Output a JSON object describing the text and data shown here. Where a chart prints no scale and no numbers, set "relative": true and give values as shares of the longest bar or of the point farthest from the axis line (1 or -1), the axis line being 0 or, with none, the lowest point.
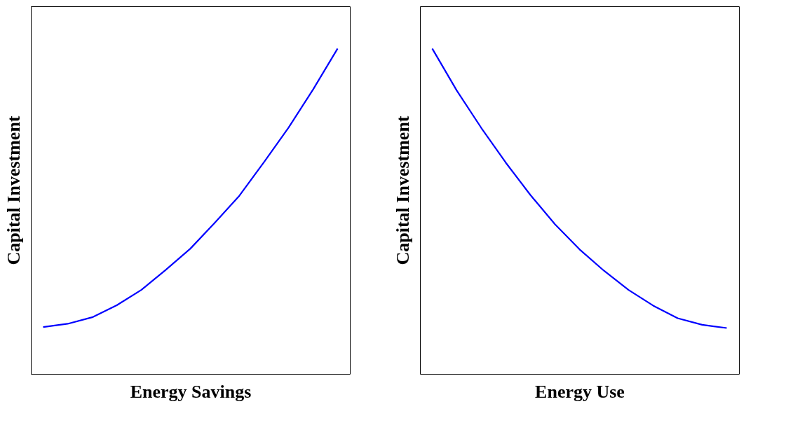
{
  "chart_data": [
    {
      "type": "line",
      "relative": true,
      "xlabel": "Energy Savings",
      "ylabel": "Capital Investment",
      "tick_labels": false,
      "grid": false,
      "marker": "none",
      "line_style": "solid",
      "categories": [
        null,
        null,
        null,
        null,
        null,
        null,
        null,
        null,
        null,
        null,
        null,
        null,
        null
      ],
      "series": [
        {
          "color": "#0000ff",
          "values": [
            0.144,
            0.154,
            0.174,
            0.211,
            0.258,
            0.32,
            0.385,
            0.465,
            0.548,
            0.651,
            0.757,
            0.874,
            1.0
          ]
        }
      ]
    },
    {
      "type": "line",
      "relative": true,
      "xlabel": "Energy Use",
      "ylabel": "Capital Investment",
      "tick_labels": false,
      "grid": false,
      "marker": "none",
      "line_style": "solid",
      "categories": [
        null,
        null,
        null,
        null,
        null,
        null,
        null,
        null,
        null,
        null,
        null,
        null,
        null
      ],
      "series": [
        {
          "color": "#0000ff",
          "values": [
            1.0,
            0.871,
            0.756,
            0.649,
            0.55,
            0.46,
            0.383,
            0.317,
            0.258,
            0.21,
            0.171,
            0.151,
            0.141
          ]
        }
      ]
    }
  ]
}
